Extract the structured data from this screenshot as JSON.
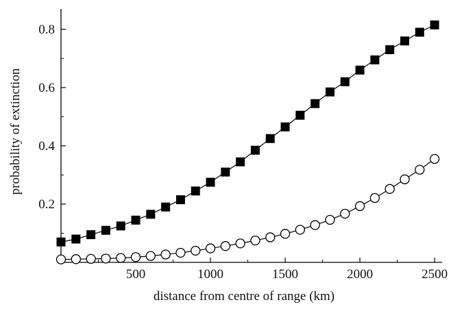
{
  "chart_data": {
    "type": "scatter",
    "title": "",
    "xlabel": "distance from centre of range (km)",
    "ylabel": "probability of extinction",
    "xlim": [
      0,
      2550
    ],
    "ylim": [
      0,
      0.87
    ],
    "x_ticks": [
      500,
      1000,
      1500,
      2000,
      2500
    ],
    "y_ticks": [
      0.2,
      0.4,
      0.6,
      0.8
    ],
    "x_tick_labels": [
      "500",
      "1000",
      "1500",
      "2000",
      "2500"
    ],
    "y_tick_labels": [
      "0.2",
      "0.4",
      "0.6",
      "0.8"
    ],
    "grid": false,
    "legend": "none",
    "x": [
      0,
      100,
      200,
      300,
      400,
      500,
      600,
      700,
      800,
      900,
      1000,
      1100,
      1200,
      1300,
      1400,
      1500,
      1600,
      1700,
      1800,
      1900,
      2000,
      2100,
      2200,
      2300,
      2400,
      2500
    ],
    "series": [
      {
        "marker": "filled-square",
        "color": "#000000",
        "values": [
          0.07,
          0.08,
          0.095,
          0.11,
          0.125,
          0.145,
          0.165,
          0.19,
          0.215,
          0.245,
          0.275,
          0.31,
          0.345,
          0.385,
          0.425,
          0.465,
          0.505,
          0.545,
          0.585,
          0.62,
          0.66,
          0.695,
          0.73,
          0.76,
          0.79,
          0.815
        ]
      },
      {
        "marker": "open-circle",
        "color": "#000000",
        "values": [
          0.01,
          0.011,
          0.012,
          0.013,
          0.015,
          0.018,
          0.022,
          0.027,
          0.033,
          0.04,
          0.048,
          0.056,
          0.065,
          0.075,
          0.086,
          0.098,
          0.112,
          0.128,
          0.146,
          0.167,
          0.193,
          0.221,
          0.252,
          0.285,
          0.318,
          0.355
        ]
      }
    ]
  }
}
